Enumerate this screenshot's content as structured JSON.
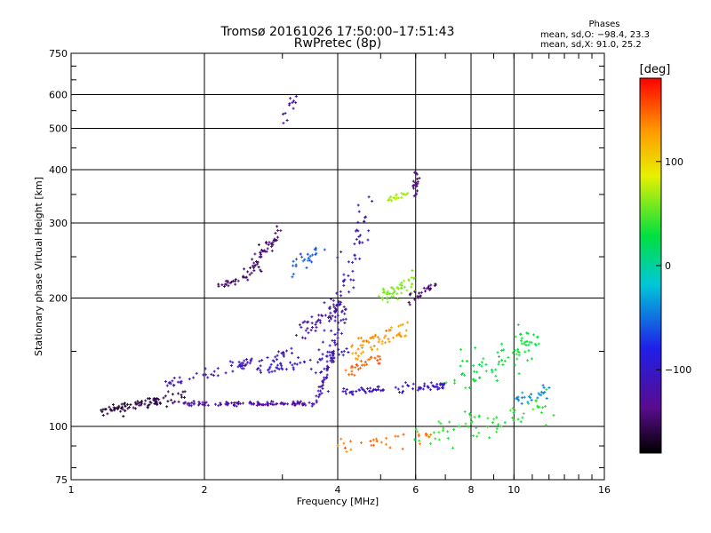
{
  "title_line1": "Tromsø 20161026 17:50:00–17:51:43",
  "title_line2": "RwPretec (8p)",
  "phases": {
    "title": "Phases",
    "o_mode": "mean, sd,O: −98.4, 23.3",
    "x_mode": "mean, sd,X:  91.0, 25.2"
  },
  "colorbar": {
    "unit_label": "[deg]",
    "tick_labels": [
      "100",
      "0",
      "−100"
    ],
    "tick_values": [
      100,
      0,
      -100
    ],
    "range": [
      -180,
      180
    ]
  },
  "chart_data": {
    "type": "scatter",
    "xlabel": "Frequency [MHz]",
    "ylabel": "Stationary phase Virtual Height [km]",
    "xscale": "log",
    "yscale": "log",
    "xlim": [
      1,
      16
    ],
    "ylim": [
      75,
      750
    ],
    "x_ticks": [
      1,
      2,
      4,
      6,
      8,
      10,
      16
    ],
    "x_tick_labels": [
      "1",
      "2",
      "4",
      "6",
      "8",
      "10",
      "16"
    ],
    "y_ticks": [
      75,
      100,
      200,
      300,
      400,
      500,
      600,
      750
    ],
    "y_tick_labels": [
      "75",
      "100",
      "200",
      "300",
      "400",
      "500",
      "600",
      "750"
    ],
    "grid": true,
    "colormap": "rainbow (black → violet → blue → cyan → green → yellow → orange → red)",
    "point_clusters": [
      {
        "from": [
          1.15,
          108
        ],
        "to": [
          1.8,
          118
        ],
        "phase": -160,
        "n": 90,
        "spread": 0.03
      },
      {
        "from": [
          1.8,
          113
        ],
        "to": [
          3.6,
          113
        ],
        "phase": -125,
        "n": 110,
        "spread": 0.012
      },
      {
        "from": [
          3.6,
          115
        ],
        "to": [
          4.0,
          160
        ],
        "phase": -115,
        "n": 40,
        "spread": 0.025
      },
      {
        "from": [
          1.6,
          125
        ],
        "to": [
          3.2,
          150
        ],
        "phase": -110,
        "n": 70,
        "spread": 0.03
      },
      {
        "from": [
          2.6,
          135
        ],
        "to": [
          4.2,
          150
        ],
        "phase": -100,
        "n": 50,
        "spread": 0.03
      },
      {
        "from": [
          2.2,
          210
        ],
        "to": [
          2.7,
          240
        ],
        "phase": -150,
        "n": 35,
        "spread": 0.04
      },
      {
        "from": [
          2.6,
          245
        ],
        "to": [
          3.0,
          290
        ],
        "phase": -145,
        "n": 40,
        "spread": 0.04
      },
      {
        "from": [
          3.1,
          230
        ],
        "to": [
          3.6,
          260
        ],
        "phase": -60,
        "n": 25,
        "spread": 0.05
      },
      {
        "from": [
          3.3,
          170
        ],
        "to": [
          4.2,
          190
        ],
        "phase": -120,
        "n": 50,
        "spread": 0.06
      },
      {
        "from": [
          3.6,
          120
        ],
        "to": [
          4.6,
          330
        ],
        "phase": -110,
        "n": 90,
        "spread": 0.09
      },
      {
        "from": [
          4.0,
          120
        ],
        "to": [
          7.0,
          125
        ],
        "phase": -105,
        "n": 80,
        "spread": 0.02
      },
      {
        "from": [
          4.3,
          150
        ],
        "to": [
          5.8,
          170
        ],
        "phase": 130,
        "n": 60,
        "spread": 0.06
      },
      {
        "from": [
          4.2,
          135
        ],
        "to": [
          5.0,
          145
        ],
        "phase": 150,
        "n": 30,
        "spread": 0.04
      },
      {
        "from": [
          5.0,
          200
        ],
        "to": [
          6.0,
          220
        ],
        "phase": 60,
        "n": 50,
        "spread": 0.04
      },
      {
        "from": [
          5.2,
          340
        ],
        "to": [
          5.8,
          355
        ],
        "phase": 70,
        "n": 20,
        "spread": 0.02
      },
      {
        "from": [
          5.9,
          350
        ],
        "to": [
          6.1,
          390
        ],
        "phase": -140,
        "n": 20,
        "spread": 0.04
      },
      {
        "from": [
          5.8,
          200
        ],
        "to": [
          6.8,
          215
        ],
        "phase": -145,
        "n": 25,
        "spread": 0.03
      },
      {
        "from": [
          6.0,
          95
        ],
        "to": [
          12.0,
          110
        ],
        "phase": 40,
        "n": 70,
        "spread": 0.08
      },
      {
        "from": [
          7.5,
          130
        ],
        "to": [
          11.5,
          160
        ],
        "phase": 30,
        "n": 80,
        "spread": 0.1
      },
      {
        "from": [
          10.0,
          115
        ],
        "to": [
          12.0,
          120
        ],
        "phase": -40,
        "n": 25,
        "spread": 0.05
      },
      {
        "from": [
          3.0,
          520
        ],
        "to": [
          3.2,
          600
        ],
        "phase": -125,
        "n": 12,
        "spread": 0.03
      },
      {
        "from": [
          3.8,
          90
        ],
        "to": [
          6.5,
          95
        ],
        "phase": 145,
        "n": 30,
        "spread": 0.04
      }
    ]
  }
}
